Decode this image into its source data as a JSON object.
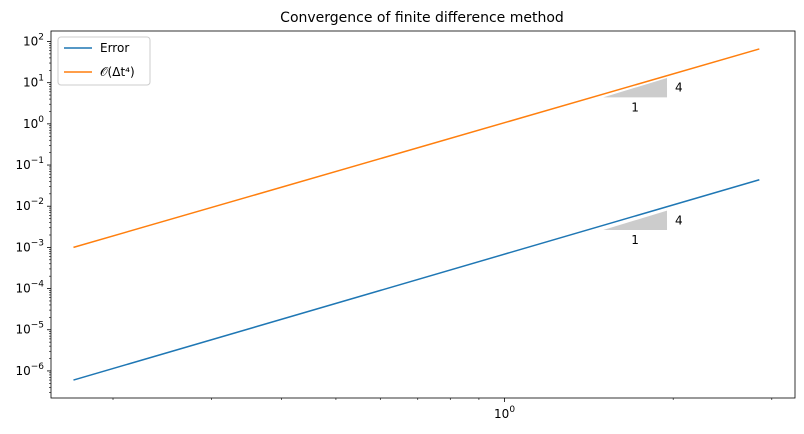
{
  "chart_data": {
    "type": "line",
    "title": "Convergence of finite difference method",
    "xlabel": "",
    "ylabel": "",
    "xscale": "log",
    "yscale": "log",
    "xlim": [
      0.155,
      3.3
    ],
    "ylim": [
      2.2e-07,
      180
    ],
    "x_tick_labels": [
      {
        "base": "10",
        "exp": "0",
        "value": 1
      }
    ],
    "y_tick_labels": [
      {
        "base": "10",
        "exp": "−6",
        "value": 1e-06
      },
      {
        "base": "10",
        "exp": "−5",
        "value": 1e-05
      },
      {
        "base": "10",
        "exp": "−4",
        "value": 0.0001
      },
      {
        "base": "10",
        "exp": "−3",
        "value": 0.001
      },
      {
        "base": "10",
        "exp": "−2",
        "value": 0.01
      },
      {
        "base": "10",
        "exp": "−1",
        "value": 0.1
      },
      {
        "base": "10",
        "exp": "0",
        "value": 1
      },
      {
        "base": "10",
        "exp": "1",
        "value": 10
      },
      {
        "base": "10",
        "exp": "2",
        "value": 100
      }
    ],
    "series": [
      {
        "name": "Error",
        "color": "#1f77b4",
        "x": [
          0.17,
          2.85
        ],
        "y": [
          6e-07,
          0.044
        ]
      },
      {
        "name": "𝒪(Δt⁴)",
        "color": "#ff7f0e",
        "x": [
          0.17,
          2.85
        ],
        "y": [
          0.001,
          66
        ]
      }
    ],
    "slope_triangles": [
      {
        "x0": 1.5,
        "x1": 1.95,
        "y0": 4.4,
        "y1": 13,
        "run_label": "1",
        "rise_label": "4",
        "color": "#cccccc"
      },
      {
        "x0": 1.5,
        "x1": 1.95,
        "y0": 0.00265,
        "y1": 0.0078,
        "run_label": "1",
        "rise_label": "4",
        "color": "#cccccc"
      }
    ],
    "legend": {
      "placement": "top-left",
      "entries": [
        "Error",
        "𝒪(Δt⁴)"
      ]
    },
    "grid": false
  }
}
